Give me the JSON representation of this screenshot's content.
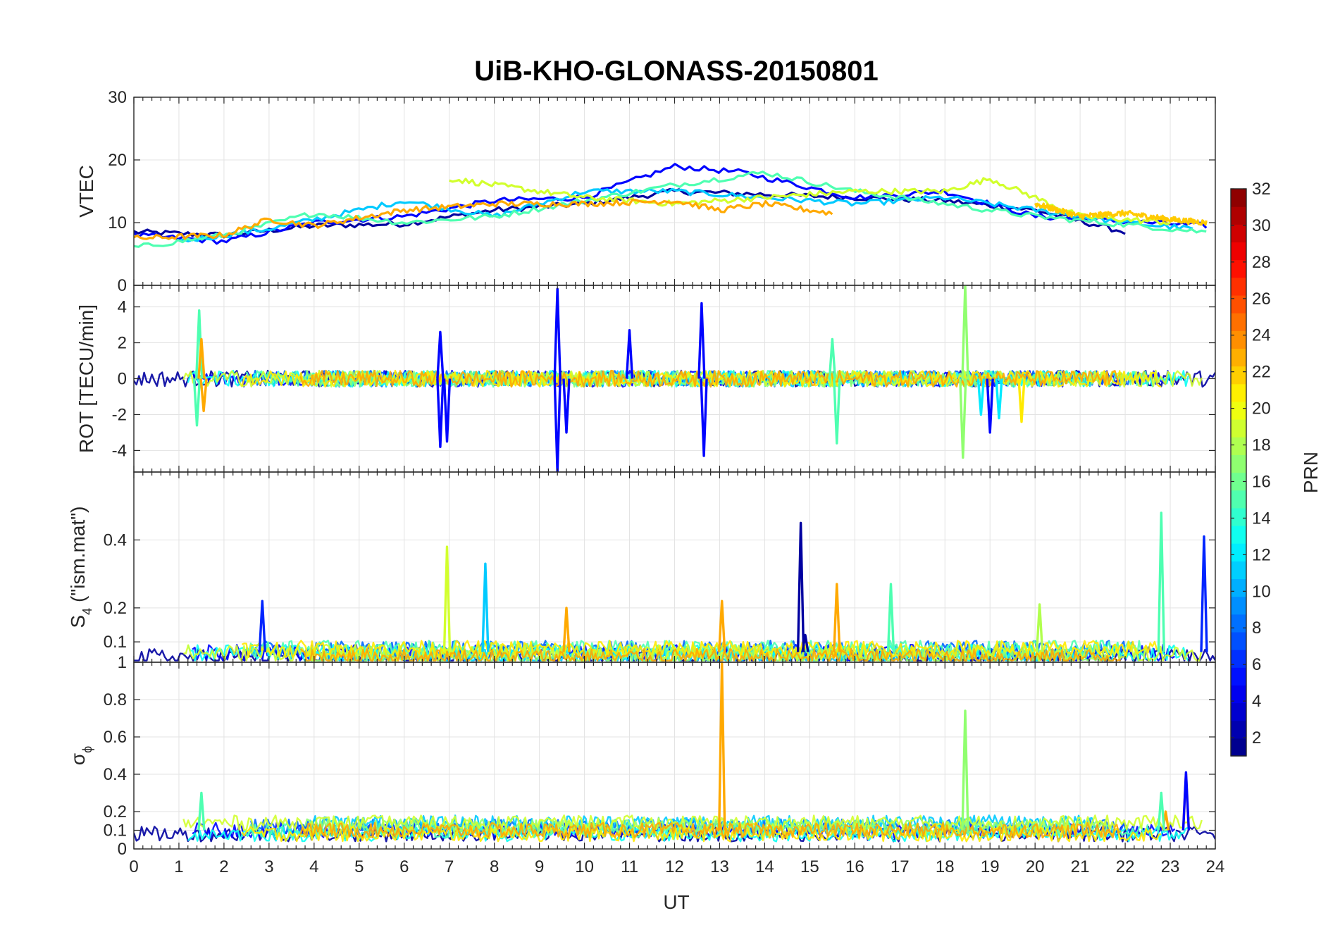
{
  "chart_data": {
    "type": "line",
    "title": "UiB-KHO-GLONASS-20150801",
    "xlabel": "UT",
    "xlim": [
      0,
      24
    ],
    "xticks": [
      0,
      1,
      2,
      3,
      4,
      5,
      6,
      7,
      8,
      9,
      10,
      11,
      12,
      13,
      14,
      15,
      16,
      17,
      18,
      19,
      20,
      21,
      22,
      23,
      24
    ],
    "colorbar": {
      "label": "PRN",
      "colormap": "jet",
      "range": [
        1,
        32
      ],
      "ticks": [
        2,
        4,
        6,
        8,
        10,
        12,
        14,
        16,
        18,
        20,
        22,
        24,
        26,
        28,
        30,
        32
      ]
    },
    "panels": [
      {
        "id": "vtec",
        "ylabel": "VTEC",
        "ylim": [
          0,
          30
        ],
        "yticks": [
          0,
          10,
          20,
          30
        ],
        "series": [
          {
            "prn": 2,
            "points": [
              [
                0,
                8.5
              ],
              [
                2,
                8
              ],
              [
                4,
                9.5
              ],
              [
                6,
                9.8
              ],
              [
                8,
                12
              ],
              [
                10,
                13
              ],
              [
                12,
                15
              ],
              [
                14,
                14.5
              ],
              [
                16,
                14
              ],
              [
                18,
                13.5
              ],
              [
                20,
                12
              ],
              [
                22,
                8.5
              ]
            ]
          },
          {
            "prn": 5,
            "points": [
              [
                0,
                8
              ],
              [
                2,
                7
              ],
              [
                4,
                10
              ],
              [
                6,
                11
              ],
              [
                8,
                13.5
              ],
              [
                10,
                14
              ],
              [
                12,
                19
              ],
              [
                13.5,
                18
              ],
              [
                16,
                14
              ],
              [
                18,
                15
              ],
              [
                20,
                11
              ],
              [
                23.8,
                9.5
              ]
            ]
          },
          {
            "prn": 11,
            "points": [
              [
                1,
                7
              ],
              [
                3,
                9
              ],
              [
                6,
                13.5
              ],
              [
                8,
                11
              ],
              [
                10,
                15
              ],
              [
                12,
                15
              ],
              [
                14,
                14
              ],
              [
                16,
                13
              ],
              [
                18,
                14
              ],
              [
                20,
                12
              ],
              [
                22,
                10
              ],
              [
                23.5,
                9
              ]
            ]
          },
          {
            "prn": 15,
            "points": [
              [
                0,
                6
              ],
              [
                2,
                8
              ],
              [
                4,
                11.5
              ],
              [
                6,
                10
              ],
              [
                8,
                11
              ],
              [
                10,
                13.5
              ],
              [
                12,
                16
              ],
              [
                13,
                17
              ],
              [
                14,
                18
              ],
              [
                16,
                15
              ],
              [
                18,
                13
              ],
              [
                20,
                11
              ],
              [
                23.8,
                8.5
              ]
            ]
          },
          {
            "prn": 19,
            "points": [
              [
                7,
                17
              ],
              [
                8,
                16
              ],
              [
                10,
                14
              ],
              [
                12,
                13
              ],
              [
                14,
                14
              ],
              [
                16,
                15
              ],
              [
                18,
                15
              ],
              [
                19,
                17
              ],
              [
                20,
                14
              ],
              [
                21,
                11
              ],
              [
                23,
                10
              ]
            ]
          },
          {
            "prn": 23,
            "points": [
              [
                0,
                7.5
              ],
              [
                2,
                8
              ],
              [
                3,
                10.5
              ],
              [
                4,
                9.5
              ],
              [
                6,
                12
              ],
              [
                8,
                13
              ],
              [
                10,
                13
              ],
              [
                12,
                13.5
              ],
              [
                13,
                12
              ],
              [
                14,
                13
              ],
              [
                15.5,
                11.5
              ]
            ]
          },
          {
            "prn": 22,
            "points": [
              [
                20,
                13
              ],
              [
                21,
                11
              ],
              [
                22,
                11.5
              ],
              [
                23,
                10.5
              ],
              [
                23.8,
                10
              ]
            ]
          }
        ]
      },
      {
        "id": "rot",
        "ylabel": "ROT [TECU/min]",
        "ylim": [
          -5.2,
          5.2
        ],
        "yticks": [
          -4,
          -2,
          0,
          2,
          4
        ],
        "series": [
          {
            "prn": 5,
            "spikes": [
              [
                6.8,
                2.6
              ],
              [
                6.8,
                -3.8
              ],
              [
                6.95,
                -3.5
              ],
              [
                9.4,
                5
              ],
              [
                9.4,
                -5.2
              ],
              [
                9.6,
                -3
              ],
              [
                11,
                2.7
              ],
              [
                12.6,
                4.2
              ],
              [
                12.65,
                -4.3
              ],
              [
                19,
                -3
              ]
            ]
          },
          {
            "prn": 15,
            "spikes": [
              [
                1.45,
                3.8
              ],
              [
                1.4,
                -2.6
              ],
              [
                15.6,
                -3.6
              ],
              [
                15.5,
                2.2
              ]
            ]
          },
          {
            "prn": 17,
            "spikes": [
              [
                18.45,
                5.2
              ],
              [
                18.4,
                -4.4
              ]
            ]
          },
          {
            "prn": 12,
            "spikes": [
              [
                19.2,
                -2.2
              ],
              [
                18.8,
                -2
              ]
            ]
          },
          {
            "prn": 21,
            "spikes": [
              [
                19.7,
                -2.4
              ]
            ]
          },
          {
            "prn": 23,
            "spikes": [
              [
                1.5,
                2.2
              ],
              [
                1.55,
                -1.8
              ]
            ]
          }
        ]
      },
      {
        "id": "s4",
        "ylabel_main": "S",
        "ylabel_sub": "4",
        "ylabel_rest": " (\"ism.mat\")",
        "ylim": [
          0.04,
          0.6
        ],
        "yticks": [
          0.1,
          0.2,
          0.4
        ],
        "series": [
          {
            "prn": 2,
            "spikes": [
              [
                14.8,
                0.45
              ],
              [
                14.9,
                0.12
              ]
            ]
          },
          {
            "prn": 6,
            "spikes": [
              [
                2.85,
                0.22
              ],
              [
                23.75,
                0.41
              ]
            ]
          },
          {
            "prn": 19,
            "spikes": [
              [
                6.95,
                0.38
              ]
            ]
          },
          {
            "prn": 11,
            "spikes": [
              [
                7.8,
                0.33
              ]
            ]
          },
          {
            "prn": 15,
            "spikes": [
              [
                22.8,
                0.48
              ],
              [
                16.8,
                0.27
              ]
            ]
          },
          {
            "prn": 23,
            "spikes": [
              [
                13.05,
                0.22
              ],
              [
                15.6,
                0.27
              ],
              [
                9.6,
                0.2
              ]
            ]
          },
          {
            "prn": 18,
            "spikes": [
              [
                20.1,
                0.21
              ]
            ]
          }
        ]
      },
      {
        "id": "sigma",
        "ylabel_main": "σ",
        "ylabel_sub": "ϕ",
        "ylim": [
          0,
          1
        ],
        "yticks": [
          0,
          0.1,
          0.2,
          0.4,
          0.6,
          0.8,
          1
        ],
        "series": [
          {
            "prn": 23,
            "spikes": [
              [
                13.05,
                1.0
              ],
              [
                23.35,
                0.4
              ],
              [
                22.9,
                0.2
              ]
            ]
          },
          {
            "prn": 17,
            "spikes": [
              [
                18.45,
                0.74
              ]
            ]
          },
          {
            "prn": 5,
            "spikes": [
              [
                23.35,
                0.41
              ]
            ]
          },
          {
            "prn": 15,
            "spikes": [
              [
                1.5,
                0.3
              ],
              [
                22.8,
                0.3
              ]
            ]
          }
        ]
      }
    ]
  }
}
